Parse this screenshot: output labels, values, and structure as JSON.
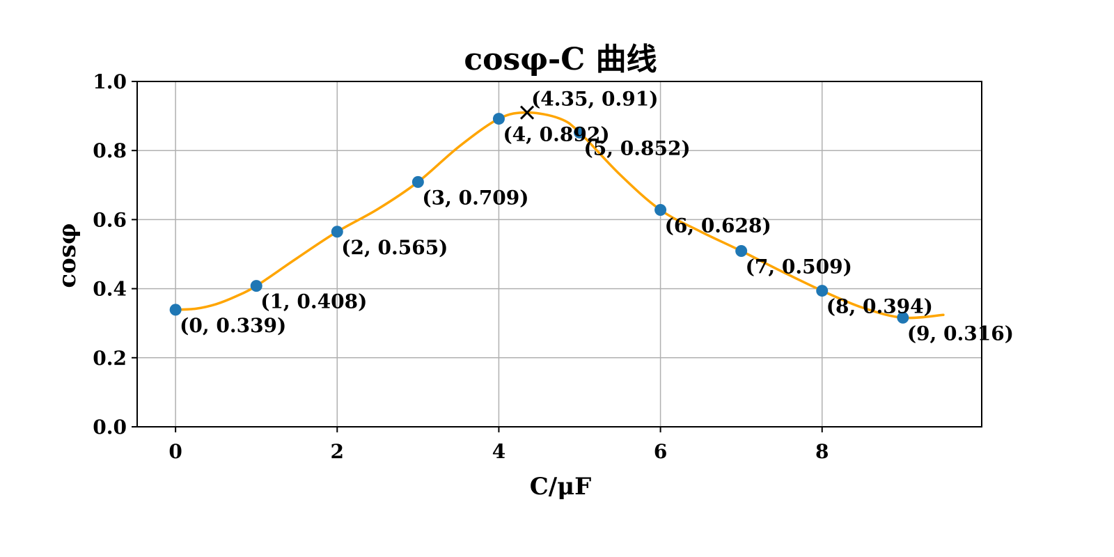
{
  "chart_data": {
    "type": "line",
    "title": "cosφ-C 曲线",
    "xlabel": "C/μF",
    "ylabel": "cosφ",
    "xlim": [
      -0.475,
      9.975
    ],
    "ylim": [
      0.0,
      1.0
    ],
    "xticks": [
      0,
      2,
      4,
      6,
      8
    ],
    "yticks": [
      0.0,
      0.2,
      0.4,
      0.6,
      0.8,
      1.0
    ],
    "xtick_labels": [
      "0",
      "2",
      "4",
      "6",
      "8"
    ],
    "ytick_labels": [
      "0.0",
      "0.2",
      "0.4",
      "0.6",
      "0.8",
      "1.0"
    ],
    "grid": true,
    "points": [
      {
        "x": 0,
        "y": 0.339,
        "label": "(0, 0.339)"
      },
      {
        "x": 1,
        "y": 0.408,
        "label": "(1, 0.408)"
      },
      {
        "x": 2,
        "y": 0.565,
        "label": "(2, 0.565)"
      },
      {
        "x": 3,
        "y": 0.709,
        "label": "(3, 0.709)"
      },
      {
        "x": 4,
        "y": 0.892,
        "label": "(4, 0.892)"
      },
      {
        "x": 5,
        "y": 0.852,
        "label": "(5, 0.852)"
      },
      {
        "x": 6,
        "y": 0.628,
        "label": "(6, 0.628)"
      },
      {
        "x": 7,
        "y": 0.509,
        "label": "(7, 0.509)"
      },
      {
        "x": 8,
        "y": 0.394,
        "label": "(8, 0.394)"
      },
      {
        "x": 9,
        "y": 0.316,
        "label": "(9, 0.316)"
      }
    ],
    "fit_curve": {
      "x": [
        0,
        0.25,
        0.5,
        0.75,
        1,
        1.5,
        2,
        2.5,
        3,
        3.5,
        4,
        4.35,
        4.75,
        5,
        5.5,
        6,
        6.5,
        7,
        7.5,
        8,
        8.5,
        9,
        9.5
      ],
      "y": [
        0.339,
        0.342,
        0.355,
        0.378,
        0.408,
        0.488,
        0.565,
        0.63,
        0.709,
        0.81,
        0.892,
        0.91,
        0.893,
        0.852,
        0.73,
        0.628,
        0.565,
        0.509,
        0.45,
        0.394,
        0.345,
        0.316,
        0.324
      ]
    },
    "peak": {
      "x": 4.35,
      "y": 0.91,
      "label": "(4.35, 0.91)"
    },
    "colors": {
      "points": "#1f77b4",
      "curve": "#ffa500",
      "grid": "#b0b0b0",
      "peak_marker": "#000000"
    }
  }
}
